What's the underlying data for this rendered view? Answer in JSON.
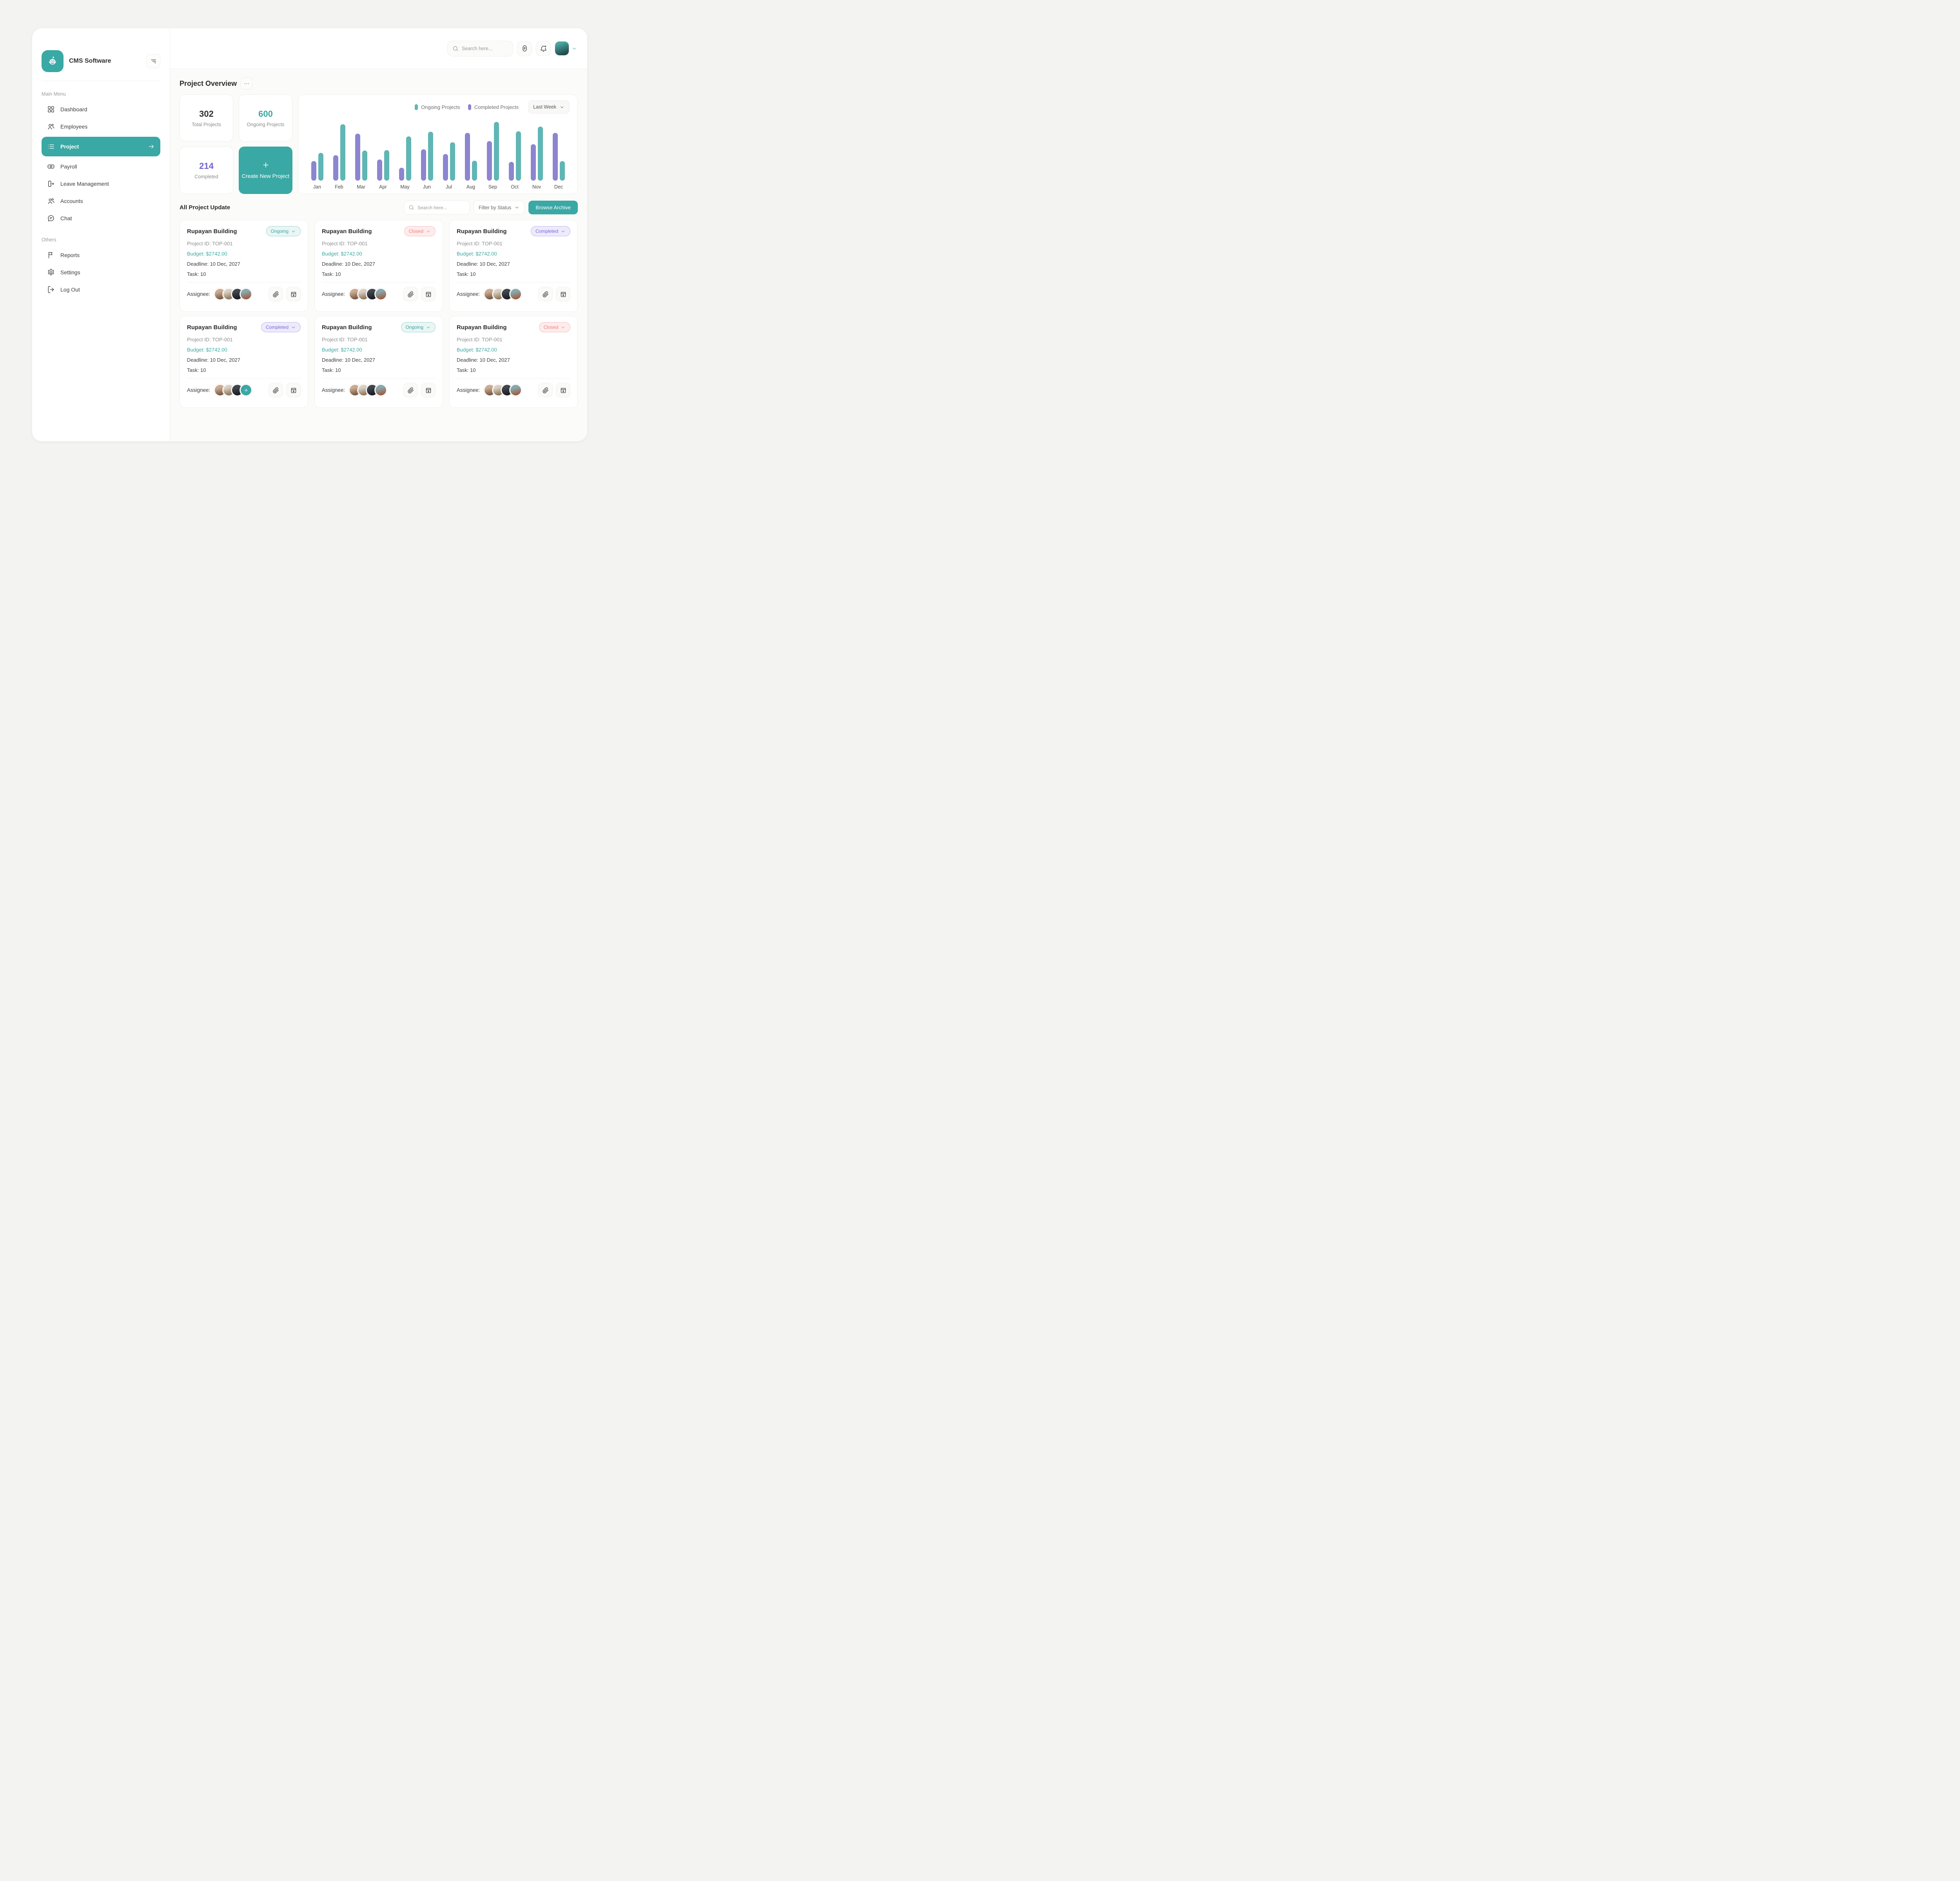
{
  "app": {
    "title": "CMS Software"
  },
  "topbar": {
    "search_placeholder": "Search here...",
    "icons": [
      "document-icon",
      "bell-icon",
      "profile-avatar",
      "chevron-down-icon"
    ]
  },
  "sidebar": {
    "main_label": "Main Menu",
    "main_items": [
      {
        "label": "Dashboard",
        "icon": "dashboard",
        "active": false
      },
      {
        "label": "Employees",
        "icon": "employees",
        "active": false
      },
      {
        "label": "Project",
        "icon": "project",
        "active": true
      },
      {
        "label": "Payroll",
        "icon": "payroll",
        "active": false
      },
      {
        "label": "Leave Management",
        "icon": "leave",
        "active": false
      },
      {
        "label": "Accounts",
        "icon": "accounts",
        "active": false
      },
      {
        "label": "Chat",
        "icon": "chat",
        "active": false
      }
    ],
    "others_label": "Others",
    "other_items": [
      {
        "label": "Reports",
        "icon": "reports"
      },
      {
        "label": "Settings",
        "icon": "settings"
      },
      {
        "label": "Log Out",
        "icon": "logout"
      }
    ]
  },
  "overview": {
    "title": "Project Overview",
    "stats": [
      {
        "value": "302",
        "label": "Total Projects",
        "color": "#2e2e2e"
      },
      {
        "value": "600",
        "label": "Ongoing Projects",
        "color": "#3aa8a4"
      },
      {
        "value": "214",
        "label": "Completed",
        "color": "#6f63d2"
      }
    ],
    "create_label": "Create New Project"
  },
  "chart_data": {
    "type": "bar",
    "title": "",
    "categories": [
      "Jan",
      "Feb",
      "Mar",
      "Apr",
      "May",
      "Jun",
      "Jul",
      "Aug",
      "Sep",
      "Oct",
      "Nov",
      "Dec"
    ],
    "series": [
      {
        "name": "Ongoing Projects",
        "color": "#60b6b4",
        "values": [
          47,
          96,
          51,
          52,
          75,
          83,
          65,
          34,
          100,
          84,
          92,
          33
        ]
      },
      {
        "name": "Completed Projects",
        "color": "#8c85d0",
        "values": [
          33,
          43,
          80,
          36,
          22,
          53,
          45,
          81,
          67,
          32,
          62,
          81
        ]
      }
    ],
    "draw_order": [
      "Completed Projects",
      "Ongoing Projects"
    ],
    "range_label": "Last Week",
    "ylim": [
      0,
      100
    ],
    "grid": false,
    "legend_position": "top-right"
  },
  "projects": {
    "title": "All Project Update",
    "search_placeholder": "Search here...",
    "filter_label": "Filter by Status",
    "archive_label": "Browse Archive",
    "labels": {
      "project_id": "Project ID:",
      "budget": "Budget:",
      "deadline": "Deadline:",
      "task": "Task:",
      "assignee": "Assignee:"
    },
    "cards": [
      {
        "name": "Rupayan Building",
        "project_id": "TOP-001",
        "budget": "$2742.00",
        "deadline": "10 Dec, 2027",
        "task": "10",
        "status": "Ongoing",
        "avatars": 4,
        "has_add": false
      },
      {
        "name": "Rupayan Building",
        "project_id": "TOP-001",
        "budget": "$2742.00",
        "deadline": "10 Dec, 2027",
        "task": "10",
        "status": "Closed",
        "avatars": 4,
        "has_add": false
      },
      {
        "name": "Rupayan Building",
        "project_id": "TOP-001",
        "budget": "$2742.00",
        "deadline": "10 Dec, 2027",
        "task": "10",
        "status": "Completed",
        "avatars": 4,
        "has_add": false
      },
      {
        "name": "Rupayan Building",
        "project_id": "TOP-001",
        "budget": "$2742.00",
        "deadline": "10 Dec, 2027",
        "task": "10",
        "status": "Completed",
        "avatars": 3,
        "has_add": true
      },
      {
        "name": "Rupayan Building",
        "project_id": "TOP-001",
        "budget": "$2742.00",
        "deadline": "10 Dec, 2027",
        "task": "10",
        "status": "Ongoing",
        "avatars": 4,
        "has_add": false
      },
      {
        "name": "Rupayan Building",
        "project_id": "TOP-001",
        "budget": "$2742.00",
        "deadline": "10 Dec, 2027",
        "task": "10",
        "status": "Closed",
        "avatars": 4,
        "has_add": false
      }
    ]
  },
  "colors": {
    "primary": "#3aa8a4",
    "ongoing_bar": "#60b6b4",
    "completed_bar": "#8c85d0",
    "status_ongoing": "#38a39d",
    "status_closed": "#ee7d7a",
    "status_completed": "#7568d9",
    "avatar_tones": [
      [
        "#cdab90",
        "#6e5342"
      ],
      [
        "#d8d0c2",
        "#8a6f50"
      ],
      [
        "#41454c",
        "#16181c"
      ],
      [
        "#87a9ae",
        "#a2563a"
      ]
    ],
    "profile_tone": [
      "#4aa5a0",
      "#22484c"
    ]
  }
}
